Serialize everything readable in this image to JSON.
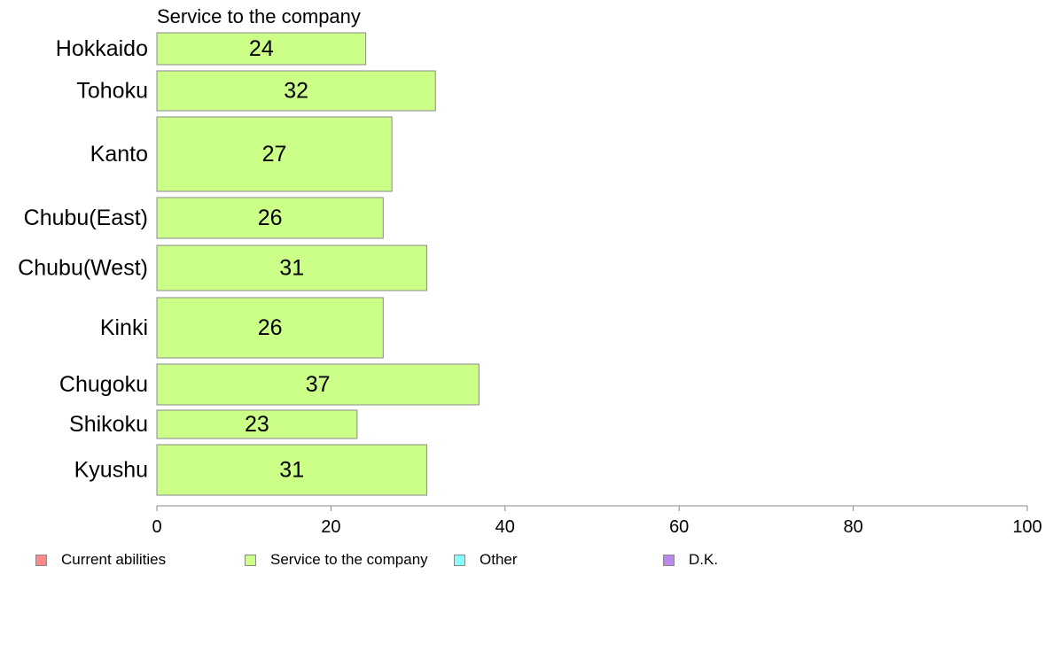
{
  "chart_data": {
    "type": "bar",
    "orientation": "horizontal",
    "subtitle": "Service to the company",
    "categories": [
      "Hokkaido",
      "Tohoku",
      "Kanto",
      "Chubu(East)",
      "Chubu(West)",
      "Kinki",
      "Chugoku",
      "Shikoku",
      "Kyushu"
    ],
    "series": [
      {
        "name": "Service to the company",
        "color": "#ccff88",
        "values": [
          24,
          32,
          27,
          26,
          31,
          26,
          37,
          23,
          31
        ],
        "labels": [
          "24",
          "32",
          "27",
          "26",
          "31",
          "26",
          "37",
          "23",
          "31"
        ]
      }
    ],
    "xlim": [
      0,
      100
    ],
    "xticks": [
      0,
      20,
      40,
      60,
      80,
      100
    ],
    "xtick_labels": [
      "0",
      "20",
      "40",
      "60",
      "80",
      "100"
    ],
    "grid": false,
    "legend_position": "bottom",
    "legend": [
      {
        "label": "Current abilities",
        "color": "#ff8888"
      },
      {
        "label": "Service to the company",
        "color": "#ccff88"
      },
      {
        "label": "Other",
        "color": "#88ffff"
      },
      {
        "label": "D.K.",
        "color": "#bb88ee"
      }
    ]
  }
}
